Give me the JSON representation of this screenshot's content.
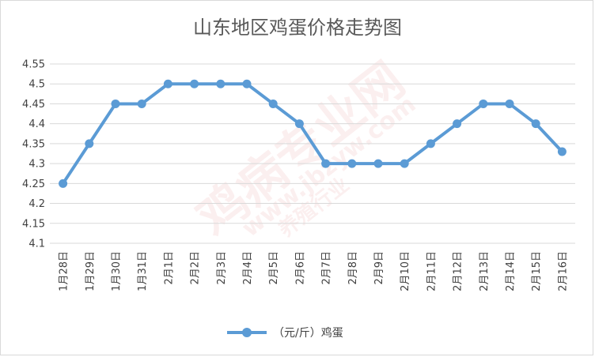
{
  "chart_data": {
    "type": "line",
    "title": "山东地区鸡蛋价格走势图",
    "categories": [
      "1月28日",
      "1月29日",
      "1月30日",
      "1月31日",
      "2月1日",
      "2月2日",
      "2月3日",
      "2月4日",
      "2月5日",
      "2月6日",
      "2月7日",
      "2月8日",
      "2月9日",
      "2月10日",
      "2月11日",
      "2月12日",
      "2月13日",
      "2月14日",
      "2月15日",
      "2月16日"
    ],
    "series": [
      {
        "name": "（元/斤）鸡蛋",
        "values": [
          4.25,
          4.35,
          4.45,
          4.45,
          4.5,
          4.5,
          4.5,
          4.5,
          4.45,
          4.4,
          4.3,
          4.3,
          4.3,
          4.3,
          4.35,
          4.4,
          4.45,
          4.45,
          4.4,
          4.33
        ],
        "color": "#5b9bd5"
      }
    ],
    "ylim": [
      4.1,
      4.55
    ],
    "yticks": [
      "4.1",
      "4.15",
      "4.2",
      "4.25",
      "4.3",
      "4.35",
      "4.4",
      "4.45",
      "4.5",
      "4.55"
    ],
    "grid": true,
    "legend": "bottom"
  },
  "watermark": {
    "main": "鸡病专业网",
    "url": "www.jbzyw.com",
    "sub": "养殖行业"
  },
  "colors": {
    "gridline": "#d9d9d9",
    "series": "#5b9bd5",
    "watermark": "#e06b6b"
  }
}
